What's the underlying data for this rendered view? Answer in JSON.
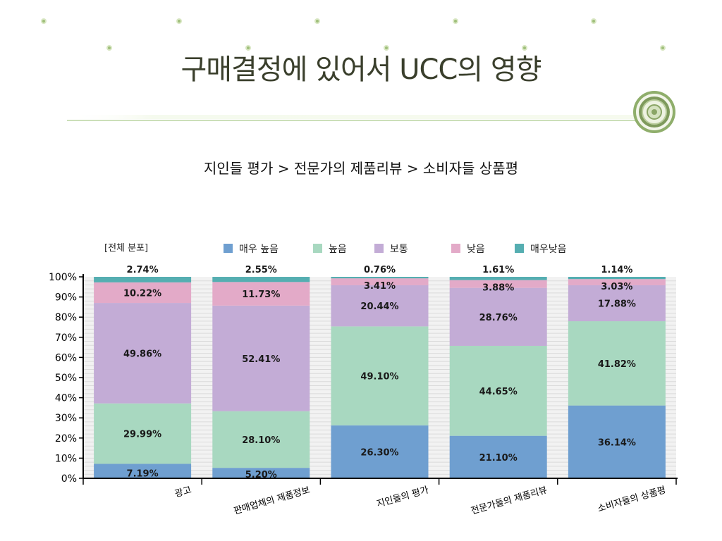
{
  "slide": {
    "title": "구매결정에 있어서 UCC의 영향",
    "subtitle": "지인들 평가 > 전문가의 제품리뷰 > 소비자들 상품평"
  },
  "colors": {
    "very_high": "#6f9fd0",
    "high": "#a8d8c0",
    "normal": "#c3acd6",
    "low": "#e3aac8",
    "very_low": "#55aeb1",
    "background_top": "#b3d397"
  },
  "icons": [
    "flower-icon",
    "circular-emblem-icon"
  ],
  "chart_data": {
    "type": "bar",
    "stacked": true,
    "title": "[전체 분포]",
    "xlabel": "",
    "ylabel": "",
    "ylim": [
      0,
      100
    ],
    "yticks": [
      "0%",
      "10%",
      "20%",
      "30%",
      "40%",
      "50%",
      "60%",
      "70%",
      "80%",
      "90%",
      "100%"
    ],
    "grid": true,
    "legend_position": "top",
    "categories": [
      "광고",
      "판매업체의 제품정보",
      "지인들의 평가",
      "전문가들의 제품리뷰",
      "소비자들의 상품평"
    ],
    "series": [
      {
        "name": "매우 높음",
        "values": [
          7.19,
          5.2,
          26.3,
          21.1,
          36.14
        ],
        "labels": [
          "7.19%",
          "5.20%",
          "26.30%",
          "21.10%",
          "36.14%"
        ]
      },
      {
        "name": "높음",
        "values": [
          29.99,
          28.1,
          49.1,
          44.65,
          41.82
        ],
        "labels": [
          "29.99%",
          "28.10%",
          "49.10%",
          "44.65%",
          "41.82%"
        ]
      },
      {
        "name": "보통",
        "values": [
          49.86,
          52.41,
          20.44,
          28.76,
          17.88
        ],
        "labels": [
          "49.86%",
          "52.41%",
          "20.44%",
          "28.76%",
          "17.88%"
        ]
      },
      {
        "name": "낮음",
        "values": [
          10.22,
          11.73,
          3.41,
          3.88,
          3.03
        ],
        "labels": [
          "10.22%",
          "11.73%",
          "3.41%",
          "3.88%",
          "3.03%"
        ]
      },
      {
        "name": "매우낮음",
        "values": [
          2.74,
          2.55,
          0.76,
          1.61,
          1.14
        ],
        "labels": [
          "2.74%",
          "2.55%",
          "0.76%",
          "1.61%",
          "1.14%"
        ]
      }
    ]
  }
}
